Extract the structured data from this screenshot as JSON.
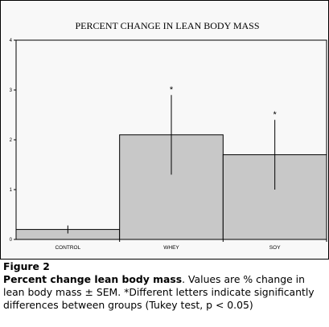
{
  "chart_data": {
    "type": "bar",
    "title": "PERCENT CHANGE IN LEAN BODY MASS",
    "xlabel": "",
    "ylabel": "",
    "categories": [
      "CONTROL",
      "WHEY",
      "SOY"
    ],
    "values": [
      0.2,
      2.1,
      1.7
    ],
    "errors": [
      0.08,
      0.8,
      0.7
    ],
    "significance": [
      "",
      "*",
      "*"
    ],
    "ylim": [
      0,
      4
    ],
    "yticks": [
      "0",
      "1",
      "2",
      "3",
      "4"
    ],
    "grid": false,
    "legend": "none",
    "colors": {
      "bar_fill": "#c8c8c8",
      "bar_stroke": "#000000",
      "plot_background": "#f8f8f8"
    }
  },
  "caption": {
    "label": "Figure 2",
    "heading": "Percent change lean body mass",
    "text": ". Values are % change in lean body mass ± SEM. *Different letters indicate significantly differences between groups (Tukey test, p < 0.05)"
  }
}
